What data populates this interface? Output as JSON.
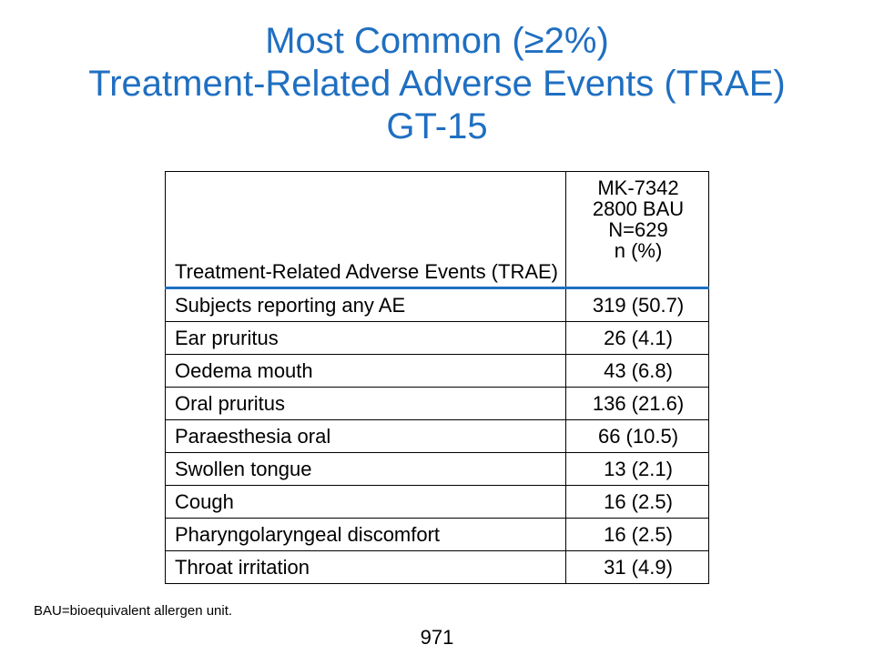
{
  "slide": {
    "title_lines": [
      "Most Common (≥2%)",
      "Treatment-Related Adverse Events (TRAE)",
      "GT-15"
    ],
    "table": {
      "header_col1": "Treatment-Related Adverse Events (TRAE)",
      "header_col2_lines": [
        "MK-7342",
        "2800 BAU",
        "N=629",
        "n (%)"
      ],
      "rows": [
        {
          "event": "Subjects reporting any AE",
          "value": "319 (50.7)"
        },
        {
          "event": "Ear pruritus",
          "value": "26 (4.1)"
        },
        {
          "event": "Oedema mouth",
          "value": "43 (6.8)"
        },
        {
          "event": "Oral pruritus",
          "value": "136 (21.6)"
        },
        {
          "event": "Paraesthesia oral",
          "value": "66 (10.5)"
        },
        {
          "event": "Swollen tongue",
          "value": "13 (2.1)"
        },
        {
          "event": "Cough",
          "value": "16 (2.5)"
        },
        {
          "event": "Pharyngolaryngeal discomfort",
          "value": "16 (2.5)"
        },
        {
          "event": "Throat irritation",
          "value": "31 (4.9)"
        }
      ]
    },
    "footnote": "BAU=bioequivalent allergen unit.",
    "page_number": "971",
    "colors": {
      "title": "#1f6fc1",
      "header_rule": "#1f6fc1"
    }
  }
}
